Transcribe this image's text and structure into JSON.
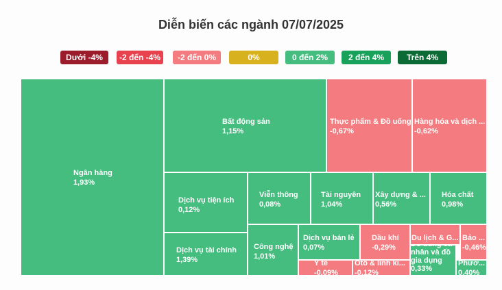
{
  "colors": {
    "below_-4": "#9b1c2a",
    "-2_to_-4": "#e8424f",
    "-2_to_0": "#f47c80",
    "zero": "#d8b21e",
    "0_to_2": "#44bd7f",
    "2_to_4": "#17a15a",
    "above_4": "#0c6b35"
  },
  "chart_data": {
    "type": "treemap",
    "title": "Diễn biến các ngành 07/07/2025",
    "legend": [
      {
        "label": "Dưới -4%",
        "color": "#9b1c2a"
      },
      {
        "label": "-2 đến -4%",
        "color": "#e8424f"
      },
      {
        "label": "-2 đến 0%",
        "color": "#f47c80"
      },
      {
        "label": "0%",
        "color": "#d8b21e"
      },
      {
        "label": "0 đến 2%",
        "color": "#44bd7f"
      },
      {
        "label": "2 đến 4%",
        "color": "#17a15a"
      },
      {
        "label": "Trên 4%",
        "color": "#0c6b35"
      }
    ],
    "sectors": [
      {
        "name": "Ngân hàng",
        "change": "1,93%"
      },
      {
        "name": "Bất động sản",
        "change": "1,15%"
      },
      {
        "name": "Thực phẩm & Đồ uống",
        "change": "-0,67%"
      },
      {
        "name": "Hàng hóa và dịch ...",
        "change": "-0,62%"
      },
      {
        "name": "Dịch vụ tiện ích",
        "change": "0,12%"
      },
      {
        "name": "Viễn thông",
        "change": "0,08%"
      },
      {
        "name": "Tài nguyên",
        "change": "1,04%"
      },
      {
        "name": "Xây dựng & ...",
        "change": "0,56%"
      },
      {
        "name": "Hóa chất",
        "change": "0,98%"
      },
      {
        "name": "Dịch vụ tài chính",
        "change": "1,39%"
      },
      {
        "name": "Công nghệ",
        "change": "1,01%"
      },
      {
        "name": "Dịch vụ bán lẻ",
        "change": "0,07%"
      },
      {
        "name": "Dầu khí",
        "change": "-0,29%"
      },
      {
        "name": "Du lịch & G...",
        "change": ""
      },
      {
        "name": "Đồ dùng cá nhân và đồ gia dụng",
        "change": "0,33%"
      },
      {
        "name": "Bảo ...",
        "change": "-0,46%"
      },
      {
        "name": "Y tế",
        "change": "-0,09%"
      },
      {
        "name": "Ôtô & linh ki...",
        "change": "-0,12%"
      },
      {
        "name": "Phươ...",
        "change": "0,40%"
      }
    ]
  }
}
